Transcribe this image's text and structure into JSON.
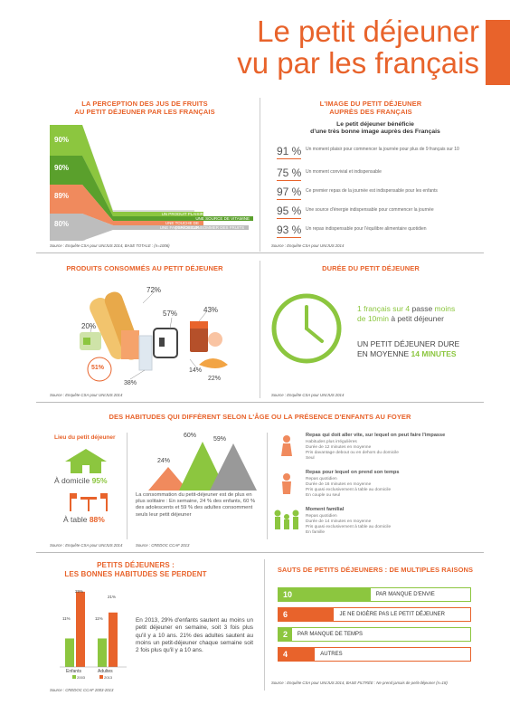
{
  "header": {
    "title_line1": "Le petit déjeuner",
    "title_line2": "vu par les français"
  },
  "colors": {
    "orange": "#e8632b",
    "green": "#8cc63f",
    "grey": "#9e9e9e"
  },
  "juices": {
    "title_line1": "LA PERCEPTION DES JUS DE FRUITS",
    "title_line2": "AU PETIT DÉJEUNER PAR LES FRANÇAIS",
    "rows": [
      {
        "value": "90%",
        "label": "UN PRODUIT PLAISIR"
      },
      {
        "value": "90%",
        "label": "UNE SOURCE DE VITAMINE"
      },
      {
        "value": "89%",
        "label": "UNE TOUCHE DE FRAÎCHEUR"
      },
      {
        "value": "80%",
        "label": "UNE FAÇON DE CONSOMMER DES FRUITS"
      }
    ],
    "source": "Source : Enquête CSA pour UNIJUS 2014, BASE TOTALE : (n=1006)"
  },
  "image": {
    "title_line1": "L'IMAGE DU PETIT DÉJEUNER",
    "title_line2": "AUPRÈS DES FRANÇAIS",
    "subtitle_line1": "Le petit déjeuner bénéficie",
    "subtitle_line2": "d'une très bonne image auprès des Français",
    "rows": [
      {
        "value": "91 %",
        "text": "Un moment plaisir pour commencer la journée pour plus de 9 français sur 10"
      },
      {
        "value": "75 %",
        "text": "Un moment convivial et indispensable"
      },
      {
        "value": "97 %",
        "text": "Ce premier repas de la journée est indispensable pour les enfants"
      },
      {
        "value": "95 %",
        "text": "Une source d'énergie indispensable pour commencer la journée"
      },
      {
        "value": "93 %",
        "text": "Un repas indispensable pour l'équilibre alimentaire quotidien"
      }
    ],
    "source": "Source : Enquête CSA pour UNIJUS 2014"
  },
  "products": {
    "title": "PRODUITS CONSOMMÉS AU PETIT DÉJEUNER",
    "labels": {
      "bread": "72%",
      "tea": "20%",
      "juice": "51%",
      "glass": "38%",
      "coffee": "57%",
      "jam": "43%",
      "butter": "14%",
      "croissant": "22%"
    },
    "source": "Source : Enquête CSA pour UNIJUS 2014"
  },
  "duration": {
    "title": "DURÉE DU PETIT DÉJEUNER",
    "line1_a": "1 français sur 4",
    "line1_b": " passe ",
    "line1_c": "moins",
    "line2_a": "de 10min",
    "line2_b": " à petit déjeuner",
    "big1": "UN PETIT DÉJEUNER DURE",
    "big2_a": "EN MOYENNE ",
    "big2_b": "14 MINUTES",
    "source": "Source : Enquête CSA pour UNIJUS 2014"
  },
  "habits": {
    "title": "DES HABITUDES QUI DIFFÈRENT SELON L'ÂGE OU LA PRÉSENCE D'ENFANTS AU FOYER",
    "place_title": "Lieu du petit déjeuner",
    "home_label": "À domicile ",
    "home_value": "95%",
    "table_label": "À table ",
    "table_value": "88%",
    "solitary": {
      "v1": "24%",
      "v2": "60%",
      "v3": "59%",
      "text": "La consommation du petit-déjeuner est de plus en plus solitaire : En semaine, 24 % des enfants, 60 % des adolescents et 59 % des adultes consomment seuls leur petit déjeuner"
    },
    "meals": [
      {
        "title": "Repas qui doit aller vite, sur lequel on peut faire l'impasse",
        "lines": [
          "Habitudes plus irrégulières",
          "Durée de 12 minutes en moyenne",
          "Pris davantage debout ou en dehors du domicile",
          "Seul"
        ]
      },
      {
        "title": "Repas pour lequel on prend son temps",
        "lines": [
          "Repas quotidien",
          "Durée de 16 minutes en moyenne",
          "Pris quasi exclusivement à table au domicile",
          "En couple ou seul"
        ]
      },
      {
        "title": "Moment familial",
        "lines": [
          "Repas quotidien",
          "Durée de 14 minutes en moyenne",
          "Pris quasi exclusivement à table au domicile",
          "En famille"
        ]
      }
    ],
    "source_left": "Source : Enquête CSA pour UNIJUS 2014",
    "source_mid": "Source : CREDOC CCAF 2013"
  },
  "good_habits": {
    "title_line1": "PETITS DÉJEUNERS :",
    "title_line2": "LES BONNES HABITUDES SE PERDENT",
    "text": "En 2013, 29% d'enfants sautent au moins un petit déjeuner en semaine, soit 3 fois plus qu'il y a 10 ans. 21% des adultes sautent au moins un petit-déjeuner chaque semaine soit 2 fois plus qu'il y a 10 ans.",
    "legend_2003": "2003",
    "legend_2013": "2013",
    "source": "Source : CREDOC CCAF 2003-2013",
    "chart_data": {
      "type": "bar",
      "categories": [
        "Enfants",
        "Adultes"
      ],
      "series": [
        {
          "name": "2003",
          "values": [
            11,
            11
          ]
        },
        {
          "name": "2013",
          "values": [
            29,
            21
          ]
        }
      ],
      "ylim": [
        0,
        30
      ]
    },
    "value_labels": [
      "11%",
      "29%",
      "11%",
      "21%"
    ]
  },
  "skips": {
    "title": "SAUTS DE PETITS DÉJEUNERS : DE MULTIPLES RAISONS",
    "reasons": [
      {
        "n": "10",
        "label": "PAR MANQUE D'ENVIE",
        "color": "#8cc63f",
        "fill": 0.48
      },
      {
        "n": "6",
        "label": "JE NE DIGÈRE PAS LE PETIT DÉJEUNER",
        "color": "#e8632b",
        "fill": 0.29
      },
      {
        "n": "2",
        "label": "PAR MANQUE DE TEMPS",
        "color": "#8cc63f",
        "fill": 0.07
      },
      {
        "n": "4",
        "label": "AUTRES",
        "color": "#e8632b",
        "fill": 0.19
      }
    ],
    "source": "Source : Enquête CSA pour UNIJUS 2014, BASE FILTRÉE : Ne prend jamais de petit-déjeuner (n=18)"
  }
}
